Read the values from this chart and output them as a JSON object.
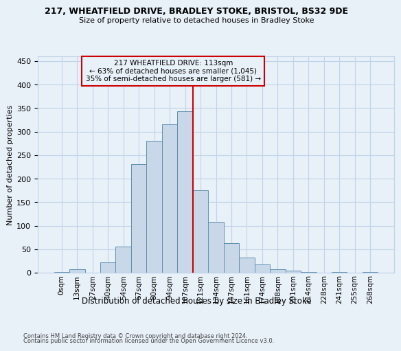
{
  "title_line1": "217, WHEATFIELD DRIVE, BRADLEY STOKE, BRISTOL, BS32 9DE",
  "title_line2": "Size of property relative to detached houses in Bradley Stoke",
  "xlabel": "Distribution of detached houses by size in Bradley Stoke",
  "ylabel": "Number of detached properties",
  "footnote1": "Contains HM Land Registry data © Crown copyright and database right 2024.",
  "footnote2": "Contains public sector information licensed under the Open Government Licence v3.0.",
  "bar_labels": [
    "0sqm",
    "13sqm",
    "27sqm",
    "40sqm",
    "54sqm",
    "67sqm",
    "80sqm",
    "94sqm",
    "107sqm",
    "121sqm",
    "134sqm",
    "147sqm",
    "161sqm",
    "174sqm",
    "188sqm",
    "201sqm",
    "214sqm",
    "228sqm",
    "241sqm",
    "255sqm",
    "268sqm"
  ],
  "bar_heights": [
    2,
    7,
    0,
    22,
    55,
    230,
    280,
    315,
    343,
    175,
    108,
    63,
    32,
    18,
    7,
    4,
    2,
    0,
    2,
    0,
    1
  ],
  "bar_color": "#c8d8e8",
  "bar_edge_color": "#6090b0",
  "grid_color": "#c0d4e8",
  "bg_color": "#e8f0f8",
  "property_line_color": "#cc0000",
  "annotation_line1": "217 WHEATFIELD DRIVE: 113sqm",
  "annotation_line2": "← 63% of detached houses are smaller (1,045)",
  "annotation_line3": "35% of semi-detached houses are larger (581) →",
  "annotation_box_edge": "#cc0000",
  "ylim": [
    0,
    460
  ],
  "yticks": [
    0,
    50,
    100,
    150,
    200,
    250,
    300,
    350,
    400,
    450
  ],
  "property_bar_index": 8.5
}
